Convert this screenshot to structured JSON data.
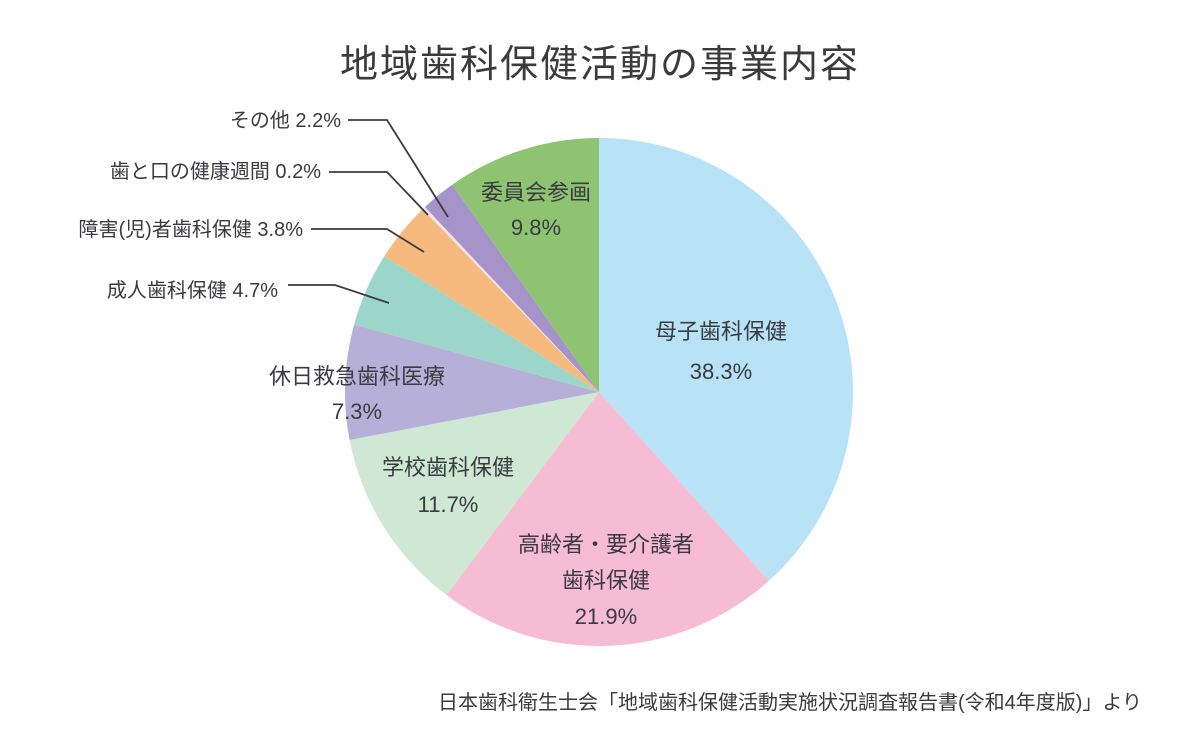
{
  "title": "地域歯科保健活動の事業内容",
  "source": "日本歯科衛生士会「地域歯科保健活動実施状況調査報告書(令和4年度版)」より",
  "text_color": "#3a3a40",
  "chart_data": {
    "type": "pie",
    "title": "地域歯科保健活動の事業内容",
    "start_angle_deg": 0,
    "direction": "clockwise",
    "total": 99.9,
    "legend_position": "labels-on-and-around-pie",
    "slices": [
      {
        "key": "boshi",
        "label": "母子歯科保健",
        "value": 38.3,
        "pct": "38.3%",
        "color": "#B8E2F6",
        "label_placement": "inside"
      },
      {
        "key": "korei",
        "label": "高齢者・要介護者歯科保健",
        "label_lines": [
          "高齢者・要介護者",
          "歯科保健"
        ],
        "value": 21.9,
        "pct": "21.9%",
        "color": "#F6BCD4",
        "label_placement": "inside"
      },
      {
        "key": "gakko",
        "label": "学校歯科保健",
        "value": 11.7,
        "pct": "11.7%",
        "color": "#CEE8D4",
        "label_placement": "inside"
      },
      {
        "key": "kyujitsu",
        "label": "休日救急歯科医療",
        "value": 7.3,
        "pct": "7.3%",
        "color": "#B6B0D8",
        "label_placement": "inside"
      },
      {
        "key": "seijin",
        "label": "成人歯科保健",
        "value": 4.7,
        "pct": "4.7%",
        "color": "#9CD5C9",
        "label_placement": "outside"
      },
      {
        "key": "shogai",
        "label": "障害(児)者歯科保健",
        "value": 3.8,
        "pct": "3.8%",
        "color": "#F6BA7F",
        "label_placement": "outside"
      },
      {
        "key": "hatokuchi",
        "label": "歯と口の健康週間",
        "value": 0.2,
        "pct": "0.2%",
        "color": "#F1E3EA",
        "label_placement": "outside"
      },
      {
        "key": "sonota",
        "label": "その他",
        "value": 2.2,
        "pct": "2.2%",
        "color": "#A593C9",
        "label_placement": "outside"
      },
      {
        "key": "iinkai",
        "label": "委員会参画",
        "value": 9.8,
        "pct": "9.8%",
        "color": "#8EC471",
        "label_placement": "inside"
      }
    ]
  }
}
